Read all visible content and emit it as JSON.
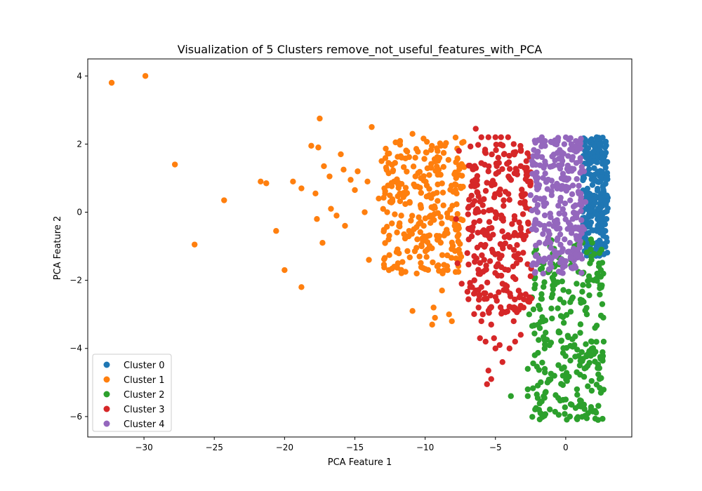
{
  "chart_data": {
    "type": "scatter",
    "title": "Visualization of 5 Clusters remove_not_useful_features_with_PCA",
    "xlabel": "PCA Feature 1",
    "ylabel": "PCA Feature 2",
    "xlim": [
      -34.0,
      4.7
    ],
    "ylim": [
      -6.6,
      4.5
    ],
    "xticks": [
      -30,
      -25,
      -20,
      -15,
      -10,
      -5,
      0
    ],
    "yticks": [
      -6,
      -4,
      -2,
      0,
      2,
      4
    ],
    "grid": false,
    "legend_position": "lower-left",
    "series": [
      {
        "name": "Cluster 0",
        "color": "#1f77b4",
        "region": {
          "x": [
            1.2,
            3.0
          ],
          "y": [
            -1.3,
            2.2
          ]
        },
        "points": [
          [
            1.4,
            2.1
          ],
          [
            2.2,
            2.2
          ],
          [
            2.8,
            1.9
          ],
          [
            2.9,
            1.0
          ],
          [
            2.8,
            0.0
          ],
          [
            2.6,
            -0.5
          ],
          [
            2.3,
            -1.0
          ],
          [
            1.6,
            -1.2
          ],
          [
            1.5,
            0.5
          ],
          [
            2.0,
            1.5
          ],
          [
            2.5,
            1.2
          ],
          [
            1.8,
            -0.3
          ],
          [
            2.7,
            0.6
          ],
          [
            1.3,
            1.0
          ],
          [
            2.9,
            -0.2
          ],
          [
            2.4,
            2.0
          ],
          [
            1.9,
            0.8
          ],
          [
            2.6,
            1.6
          ]
        ]
      },
      {
        "name": "Cluster 1",
        "color": "#ff7f0e",
        "region": {
          "x": [
            -13.0,
            -7.2
          ],
          "y": [
            -1.8,
            2.2
          ]
        },
        "points": [
          [
            -32.3,
            3.8
          ],
          [
            -29.9,
            4.0
          ],
          [
            -27.8,
            1.4
          ],
          [
            -26.4,
            -0.95
          ],
          [
            -24.3,
            0.35
          ],
          [
            -21.7,
            0.9
          ],
          [
            -21.3,
            0.85
          ],
          [
            -20.6,
            -0.55
          ],
          [
            -20.0,
            -1.7
          ],
          [
            -19.4,
            0.9
          ],
          [
            -18.8,
            0.7
          ],
          [
            -18.8,
            -2.2
          ],
          [
            -18.1,
            1.95
          ],
          [
            -17.8,
            0.55
          ],
          [
            -17.7,
            -0.2
          ],
          [
            -17.6,
            1.9
          ],
          [
            -17.5,
            2.75
          ],
          [
            -17.3,
            -0.9
          ],
          [
            -17.2,
            1.35
          ],
          [
            -16.8,
            1.05
          ],
          [
            -16.7,
            0.1
          ],
          [
            -16.3,
            -0.1
          ],
          [
            -16.0,
            1.7
          ],
          [
            -15.8,
            1.25
          ],
          [
            -15.7,
            -0.4
          ],
          [
            -15.3,
            0.95
          ],
          [
            -15.0,
            0.65
          ],
          [
            -14.8,
            1.2
          ],
          [
            -14.3,
            0.0
          ],
          [
            -14.1,
            0.9
          ],
          [
            -14.0,
            -1.4
          ],
          [
            -13.8,
            2.5
          ],
          [
            -13.3,
            0.4
          ],
          [
            -12.9,
            0.7
          ],
          [
            -12.6,
            -0.8
          ],
          [
            -12.3,
            1.2
          ],
          [
            -12.2,
            -1.6
          ],
          [
            -12.1,
            2.05
          ],
          [
            -11.9,
            0.8
          ],
          [
            -11.7,
            -0.1
          ],
          [
            -11.4,
            -1.75
          ],
          [
            -11.1,
            0.3
          ],
          [
            -10.9,
            -2.9
          ],
          [
            -10.9,
            2.3
          ],
          [
            -10.8,
            -0.5
          ],
          [
            -10.7,
            1.6
          ],
          [
            -10.6,
            -1.8
          ],
          [
            -10.4,
            -1.3
          ],
          [
            -10.3,
            1.0
          ],
          [
            -10.1,
            -0.4
          ],
          [
            -9.9,
            1.75
          ],
          [
            -9.7,
            0.5
          ],
          [
            -9.6,
            -0.1
          ],
          [
            -9.5,
            -3.3
          ],
          [
            -9.4,
            -2.8
          ],
          [
            -9.3,
            -3.1
          ],
          [
            -9.1,
            1.1
          ],
          [
            -9.0,
            -0.7
          ],
          [
            -8.8,
            -2.3
          ],
          [
            -8.7,
            0.2
          ],
          [
            -8.6,
            1.95
          ],
          [
            -8.4,
            -1.7
          ],
          [
            -8.3,
            -3.0
          ],
          [
            -8.1,
            -3.2
          ],
          [
            -8.0,
            0.6
          ],
          [
            -7.9,
            -0.4
          ],
          [
            -7.8,
            1.0
          ],
          [
            -7.6,
            -1.1
          ],
          [
            -7.5,
            0.75
          ],
          [
            -7.4,
            1.4
          ],
          [
            -11.4,
            -0.7
          ],
          [
            -12.7,
            0.0
          ],
          [
            -13.1,
            1.5
          ],
          [
            -10.0,
            -0.8
          ]
        ]
      },
      {
        "name": "Cluster 2",
        "color": "#2ca02c",
        "region": {
          "x": [
            -2.4,
            2.7
          ],
          "y": [
            -6.1,
            -0.8
          ]
        },
        "points": [
          [
            -2.4,
            -2.5
          ],
          [
            -2.6,
            -3.0
          ],
          [
            -2.2,
            -4.2
          ],
          [
            -2.7,
            -4.6
          ],
          [
            -2.7,
            -5.4
          ],
          [
            -1.9,
            -5.8
          ],
          [
            -1.8,
            -5.9
          ],
          [
            -0.5,
            -5.95
          ],
          [
            0.3,
            -6.0
          ],
          [
            1.5,
            -6.05
          ],
          [
            2.3,
            -6.1
          ],
          [
            2.5,
            -5.3
          ],
          [
            2.4,
            -4.9
          ],
          [
            2.6,
            -4.3
          ],
          [
            2.7,
            -3.8
          ],
          [
            2.6,
            -2.7
          ],
          [
            2.5,
            -1.7
          ],
          [
            2.4,
            -1.2
          ],
          [
            1.8,
            -0.8
          ],
          [
            1.2,
            -0.9
          ],
          [
            0.4,
            -1.4
          ],
          [
            -0.8,
            -1.6
          ],
          [
            -1.6,
            -1.8
          ],
          [
            -3.9,
            -5.4
          ],
          [
            -2.7,
            -5.2
          ],
          [
            -1.3,
            -5.0
          ],
          [
            0.0,
            -5.5
          ],
          [
            1.0,
            -4.5
          ],
          [
            -0.5,
            -3.5
          ],
          [
            0.5,
            -2.5
          ],
          [
            1.5,
            -3.0
          ],
          [
            -1.0,
            -2.5
          ],
          [
            2.0,
            -2.0
          ],
          [
            -1.5,
            -4.0
          ],
          [
            0.8,
            -5.2
          ],
          [
            1.8,
            -5.8
          ],
          [
            -0.2,
            -4.8
          ],
          [
            1.2,
            -1.8
          ]
        ]
      },
      {
        "name": "Cluster 3",
        "color": "#d62728",
        "region": {
          "x": [
            -7.0,
            -2.4
          ],
          "y": [
            -3.0,
            2.0
          ]
        },
        "points": [
          [
            -6.4,
            2.45
          ],
          [
            -6.0,
            2.2
          ],
          [
            -5.5,
            2.2
          ],
          [
            -5.0,
            2.2
          ],
          [
            -4.6,
            2.2
          ],
          [
            -4.1,
            2.2
          ],
          [
            -3.7,
            2.0
          ],
          [
            -7.6,
            1.8
          ],
          [
            -7.8,
            -0.2
          ],
          [
            -7.7,
            -1.5
          ],
          [
            -7.4,
            -2.1
          ],
          [
            -7.0,
            -1.2
          ],
          [
            -6.8,
            -2.2
          ],
          [
            -6.5,
            -2.0
          ],
          [
            -6.0,
            -2.2
          ],
          [
            -6.2,
            -2.8
          ],
          [
            -6.0,
            -3.2
          ],
          [
            -6.1,
            -3.7
          ],
          [
            -5.7,
            -3.8
          ],
          [
            -5.3,
            -3.3
          ],
          [
            -5.1,
            -3.7
          ],
          [
            -4.7,
            -3.9
          ],
          [
            -4.5,
            -4.4
          ],
          [
            -4.0,
            -4.0
          ],
          [
            -3.6,
            -3.8
          ],
          [
            -3.2,
            -3.6
          ],
          [
            -3.0,
            -2.8
          ],
          [
            -2.7,
            -2.6
          ],
          [
            -5.5,
            -4.65
          ],
          [
            -5.6,
            -5.05
          ],
          [
            -5.3,
            -4.9
          ],
          [
            -5.9,
            -3.0
          ],
          [
            -5.0,
            -4.0
          ],
          [
            -4.9,
            -2.6
          ],
          [
            -4.2,
            -2.3
          ],
          [
            -3.7,
            -3.2
          ],
          [
            -3.3,
            -2.5
          ],
          [
            -6.9,
            -0.8
          ],
          [
            -6.5,
            -0.3
          ],
          [
            -5.0,
            0.0
          ],
          [
            -4.0,
            1.0
          ],
          [
            -3.0,
            0.5
          ],
          [
            -5.5,
            1.2
          ],
          [
            -4.5,
            -1.0
          ],
          [
            -3.5,
            -1.5
          ],
          [
            -6.3,
            0.8
          ],
          [
            -2.8,
            1.5
          ],
          [
            -4.8,
            1.6
          ],
          [
            -3.2,
            -0.5
          ],
          [
            -5.8,
            -1.4
          ]
        ]
      },
      {
        "name": "Cluster 4",
        "color": "#9467bd",
        "region": {
          "x": [
            -2.4,
            1.2
          ],
          "y": [
            -1.8,
            2.2
          ]
        },
        "points": [
          [
            -1.7,
            2.2
          ],
          [
            -0.6,
            2.1
          ],
          [
            0.4,
            2.0
          ],
          [
            1.0,
            2.0
          ],
          [
            1.3,
            1.2
          ],
          [
            1.4,
            0.3
          ],
          [
            1.3,
            -0.5
          ],
          [
            0.8,
            -0.8
          ],
          [
            0.3,
            -0.9
          ],
          [
            -0.5,
            -1.2
          ],
          [
            -1.1,
            -1.5
          ],
          [
            -1.6,
            -1.8
          ],
          [
            -2.3,
            -1.5
          ],
          [
            -2.4,
            -0.5
          ],
          [
            -2.5,
            0.5
          ],
          [
            -2.4,
            1.5
          ],
          [
            -2.2,
            2.1
          ],
          [
            -1.0,
            0.5
          ],
          [
            0.0,
            1.0
          ],
          [
            0.5,
            -0.2
          ],
          [
            -1.5,
            -0.5
          ],
          [
            -0.3,
            1.6
          ],
          [
            -2.0,
            0.0
          ],
          [
            0.9,
            0.6
          ]
        ]
      }
    ]
  }
}
